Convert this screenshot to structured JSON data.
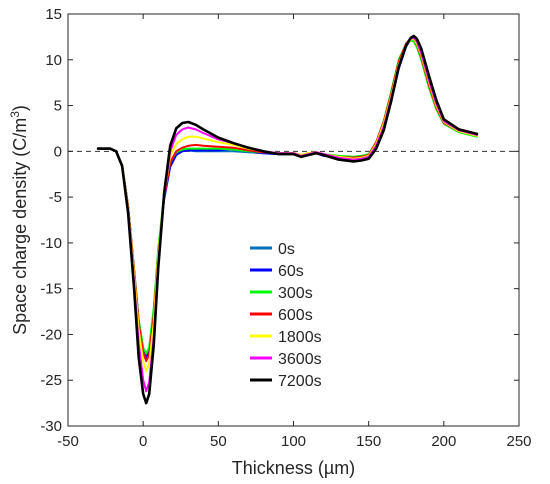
{
  "chart_data": {
    "type": "line",
    "title": "",
    "xlabel": "Thickness (µm)",
    "ylabel_main": "Space charge density (C/m",
    "ylabel_sup": "3",
    "ylabel_close": ")",
    "xlim": [
      -50,
      250
    ],
    "ylim": [
      -30,
      15
    ],
    "xticks": [
      -50,
      0,
      50,
      100,
      150,
      200,
      250
    ],
    "yticks": [
      15,
      10,
      5,
      0,
      -5,
      -10,
      -15,
      -20,
      -25,
      -30
    ],
    "xtick_labels": [
      "-50",
      "0",
      "50",
      "100",
      "150",
      "200",
      "250"
    ],
    "ytick_labels": [
      "15",
      "10",
      "5",
      "0",
      "-5",
      "-10",
      "-15",
      "-20",
      "-25",
      "-30"
    ],
    "grid": false,
    "reference_line": {
      "y": 0,
      "style": "dashed",
      "color": "#333333"
    },
    "legend_position": "center-bottom",
    "series": [
      {
        "name": "0s",
        "color": "#0072BD",
        "x": [
          -30,
          -22,
          -18,
          -14,
          -10,
          -6,
          -3,
          0,
          2,
          4,
          7,
          10,
          14,
          18,
          22,
          26,
          30,
          35,
          40,
          50,
          60,
          70,
          80,
          90,
          100,
          105,
          110,
          115,
          120,
          130,
          140,
          145,
          150,
          155,
          160,
          165,
          170,
          175,
          178,
          180,
          182,
          185,
          190,
          195,
          200,
          210,
          222
        ],
        "y": [
          0.3,
          0.3,
          0,
          -1.5,
          -6,
          -13,
          -18.5,
          -21.5,
          -22.2,
          -21.5,
          -17.5,
          -11,
          -5,
          -1.5,
          -0.3,
          0,
          0.1,
          0,
          0,
          0,
          0,
          -0.1,
          -0.2,
          -0.3,
          -0.3,
          -0.5,
          -0.3,
          -0.2,
          -0.4,
          -0.6,
          -0.7,
          -0.6,
          -0.4,
          1,
          3,
          6,
          9.5,
          11.5,
          12.2,
          12.3,
          11.8,
          10.5,
          7.5,
          5,
          3.2,
          2.3,
          1.7
        ]
      },
      {
        "name": "60s",
        "color": "#0000FF",
        "x": [
          -30,
          -22,
          -18,
          -14,
          -10,
          -6,
          -3,
          0,
          2,
          4,
          7,
          10,
          14,
          18,
          22,
          26,
          30,
          35,
          40,
          50,
          60,
          70,
          80,
          90,
          100,
          105,
          110,
          115,
          120,
          130,
          140,
          145,
          150,
          155,
          160,
          165,
          170,
          175,
          178,
          180,
          182,
          185,
          190,
          195,
          200,
          210,
          222
        ],
        "y": [
          0.3,
          0.3,
          0,
          -1.5,
          -6,
          -13,
          -18.5,
          -21.6,
          -22.5,
          -21.8,
          -17.8,
          -11.2,
          -5.2,
          -1.7,
          -0.4,
          0,
          0.1,
          0.1,
          0.1,
          0.1,
          0.3,
          0,
          -0.2,
          -0.3,
          -0.3,
          -0.5,
          -0.3,
          -0.2,
          -0.5,
          -0.7,
          -0.8,
          -0.8,
          -0.7,
          0.5,
          2.5,
          5.5,
          9,
          11.5,
          12.3,
          12.5,
          12.2,
          11,
          8,
          5.3,
          3.3,
          2.3,
          1.7
        ]
      },
      {
        "name": "300s",
        "color": "#00FF00",
        "x": [
          -30,
          -22,
          -18,
          -14,
          -10,
          -6,
          -3,
          0,
          2,
          4,
          7,
          10,
          14,
          18,
          22,
          26,
          30,
          35,
          40,
          50,
          60,
          70,
          80,
          90,
          100,
          105,
          110,
          115,
          120,
          130,
          140,
          145,
          150,
          155,
          160,
          165,
          170,
          175,
          178,
          180,
          182,
          185,
          190,
          195,
          200,
          210,
          222
        ],
        "y": [
          0.3,
          0.3,
          0,
          -1.5,
          -6,
          -13,
          -18.5,
          -21.5,
          -22.1,
          -21.4,
          -17.2,
          -10.7,
          -4.7,
          -1.2,
          -0.1,
          0.2,
          0.3,
          0.3,
          0.3,
          0.3,
          0.2,
          0,
          -0.1,
          -0.2,
          -0.2,
          -0.4,
          -0.2,
          -0.1,
          -0.3,
          -0.5,
          -0.6,
          -0.5,
          -0.3,
          1,
          3.3,
          6.5,
          10,
          11.8,
          12.1,
          12,
          11.4,
          10,
          7,
          4.6,
          3,
          2.1,
          1.6
        ]
      },
      {
        "name": "600s",
        "color": "#FF0000",
        "x": [
          -30,
          -22,
          -18,
          -14,
          -10,
          -6,
          -3,
          0,
          2,
          4,
          7,
          10,
          14,
          18,
          22,
          26,
          30,
          35,
          40,
          50,
          60,
          70,
          80,
          90,
          100,
          105,
          110,
          115,
          120,
          130,
          140,
          145,
          150,
          155,
          160,
          165,
          170,
          175,
          178,
          180,
          182,
          185,
          190,
          195,
          200,
          210,
          222
        ],
        "y": [
          0.3,
          0.3,
          0,
          -1.5,
          -6,
          -13,
          -18.8,
          -22,
          -22.9,
          -22.2,
          -18,
          -11.3,
          -5,
          -1.2,
          0,
          0.4,
          0.6,
          0.7,
          0.6,
          0.5,
          0.4,
          0.1,
          -0.1,
          -0.2,
          -0.2,
          -0.4,
          -0.2,
          -0.1,
          -0.3,
          -0.6,
          -0.7,
          -0.6,
          -0.4,
          1,
          3.2,
          6.3,
          9.8,
          11.8,
          12.3,
          12.3,
          11.7,
          10.3,
          7.3,
          4.8,
          3.1,
          2.2,
          1.7
        ]
      },
      {
        "name": "1800s",
        "color": "#FFFF00",
        "x": [
          -30,
          -22,
          -18,
          -14,
          -10,
          -6,
          -3,
          0,
          2,
          4,
          7,
          10,
          14,
          18,
          22,
          26,
          30,
          35,
          40,
          50,
          60,
          70,
          80,
          90,
          100,
          105,
          110,
          115,
          120,
          130,
          140,
          145,
          150,
          155,
          160,
          165,
          170,
          175,
          178,
          180,
          182,
          185,
          190,
          195,
          200,
          210,
          222
        ],
        "y": [
          0.3,
          0.3,
          0,
          -1.5,
          -6.2,
          -13.5,
          -19.5,
          -23,
          -24,
          -23.2,
          -18.8,
          -11.5,
          -4.7,
          -0.5,
          0.8,
          1.3,
          1.6,
          1.6,
          1.4,
          1,
          0.7,
          0.3,
          0,
          -0.2,
          -0.2,
          -0.4,
          -0.2,
          -0.1,
          -0.3,
          -0.6,
          -0.8,
          -0.7,
          -0.5,
          0.8,
          3,
          6,
          9.5,
          11.6,
          12.2,
          12.3,
          11.8,
          10.5,
          7.6,
          5,
          3.2,
          2.2,
          1.7
        ]
      },
      {
        "name": "3600s",
        "color": "#FF00FF",
        "x": [
          -30,
          -22,
          -18,
          -14,
          -10,
          -6,
          -3,
          0,
          2,
          4,
          7,
          10,
          14,
          18,
          22,
          26,
          30,
          35,
          40,
          50,
          60,
          70,
          80,
          90,
          100,
          105,
          110,
          115,
          120,
          130,
          140,
          145,
          150,
          155,
          160,
          165,
          170,
          175,
          178,
          180,
          182,
          185,
          190,
          195,
          200,
          210,
          222
        ],
        "y": [
          0.3,
          0.3,
          0,
          -1.6,
          -6.5,
          -14.2,
          -21,
          -25,
          -26.2,
          -25.2,
          -20.3,
          -12.3,
          -4.8,
          0,
          1.8,
          2.4,
          2.6,
          2.4,
          2,
          1.3,
          0.9,
          0.4,
          0,
          -0.2,
          -0.2,
          -0.5,
          -0.3,
          -0.1,
          -0.3,
          -0.7,
          -0.9,
          -0.8,
          -0.6,
          0.6,
          2.7,
          5.8,
          9.3,
          11.6,
          12.3,
          12.4,
          12,
          10.7,
          7.8,
          5.2,
          3.3,
          2.3,
          1.8
        ]
      },
      {
        "name": "7200s",
        "color": "#000000",
        "x": [
          -30,
          -22,
          -18,
          -14,
          -10,
          -6,
          -3,
          0,
          2,
          4,
          7,
          10,
          14,
          18,
          22,
          26,
          30,
          35,
          40,
          50,
          60,
          70,
          80,
          90,
          100,
          105,
          110,
          115,
          120,
          130,
          140,
          145,
          150,
          155,
          160,
          165,
          170,
          175,
          178,
          180,
          182,
          185,
          190,
          195,
          200,
          210,
          222
        ],
        "y": [
          0.3,
          0.3,
          0,
          -1.6,
          -6.7,
          -15,
          -22.5,
          -26.5,
          -27.5,
          -26.5,
          -21.2,
          -12.8,
          -4.5,
          0.6,
          2.5,
          3.1,
          3.2,
          2.9,
          2.4,
          1.5,
          0.9,
          0.4,
          0,
          -0.3,
          -0.3,
          -0.6,
          -0.4,
          -0.2,
          -0.4,
          -0.9,
          -1.1,
          -1,
          -0.8,
          0.3,
          2.3,
          5.5,
          9.2,
          11.6,
          12.4,
          12.6,
          12.3,
          11.2,
          8.3,
          5.6,
          3.5,
          2.4,
          1.9
        ]
      }
    ]
  }
}
